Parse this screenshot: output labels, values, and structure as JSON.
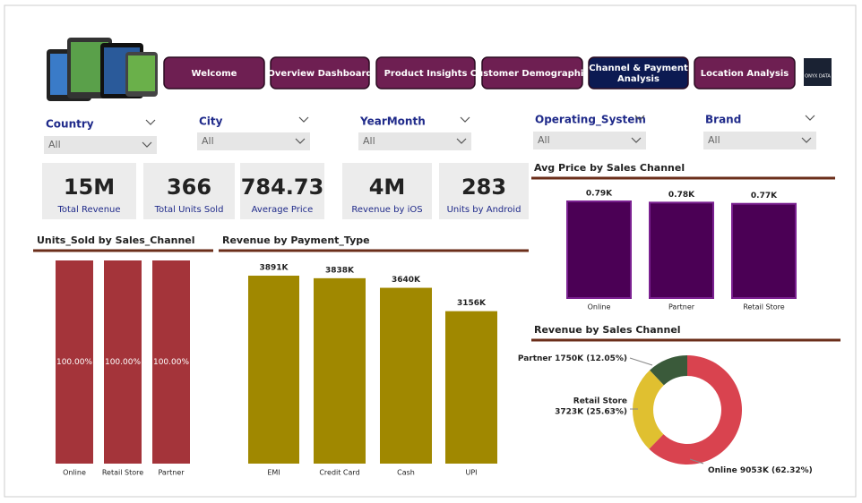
{
  "nav": [
    "Welcome",
    "Overview Dashboard",
    "Product Insights",
    "Customer Demographics",
    "Channel & Payment Analysis",
    "Location Analysis"
  ],
  "logo": "ONYX DATA",
  "filters": [
    {
      "label": "Country",
      "value": "All"
    },
    {
      "label": "City",
      "value": "All"
    },
    {
      "label": "YearMonth",
      "value": "All"
    },
    {
      "label": "Operating_System",
      "value": "All"
    },
    {
      "label": "Brand",
      "value": "All"
    }
  ],
  "kpis": [
    {
      "value": "15M",
      "label": "Total Revenue"
    },
    {
      "value": "366",
      "label": "Total Units Sold"
    },
    {
      "value": "784.73",
      "label": "Average Price"
    },
    {
      "value": "4M",
      "label": "Revenue by iOS"
    },
    {
      "value": "283",
      "label": "Units by Android"
    }
  ],
  "chart_data": [
    {
      "type": "bar",
      "title": "Units_Sold by Sales_Channel",
      "categories": [
        "Online",
        "Retail Store",
        "Partner"
      ],
      "values": [
        100,
        100,
        100
      ],
      "value_labels": [
        "100.00%",
        "100.00%",
        "100.00%"
      ],
      "color": "#a4343a"
    },
    {
      "type": "bar",
      "title": "Revenue by Payment_Type",
      "categories": [
        "EMI",
        "Credit Card",
        "Cash",
        "UPI"
      ],
      "values": [
        3891,
        3838,
        3640,
        3156
      ],
      "value_labels": [
        "3891K",
        "3838K",
        "3640K",
        "3156K"
      ],
      "color": "#a08800"
    },
    {
      "type": "bar",
      "title": "Avg Price by Sales Channel",
      "categories": [
        "Online",
        "Partner",
        "Retail Store"
      ],
      "values": [
        0.79,
        0.78,
        0.77
      ],
      "value_labels": [
        "0.79K",
        "0.78K",
        "0.77K"
      ],
      "color": "#4b0055"
    },
    {
      "type": "donut",
      "title": "Revenue by Sales Channel",
      "categories": [
        "Online",
        "Retail Store",
        "Partner"
      ],
      "values": [
        9053,
        3723,
        1750
      ],
      "value_labels": [
        "9053K (62.32%)",
        "3723K (25.63%)",
        "1750K (12.05%)"
      ],
      "colors": [
        "#d9434f",
        "#e0c030",
        "#3a5a3a"
      ]
    }
  ]
}
